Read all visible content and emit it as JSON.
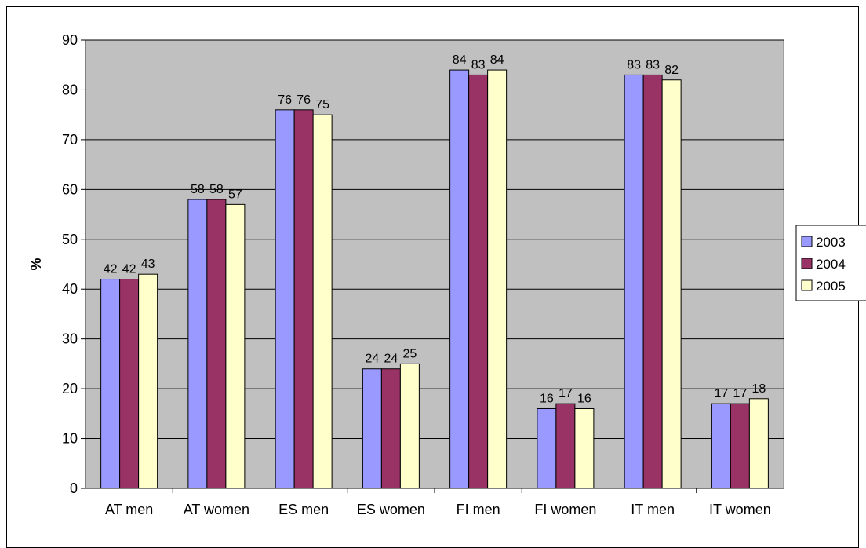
{
  "chart_data": {
    "type": "bar",
    "title": "",
    "xlabel": "",
    "ylabel": "%",
    "ylim": [
      0,
      90
    ],
    "ytick_step": 10,
    "grid": true,
    "legend_position": "right",
    "categories": [
      "AT men",
      "AT women",
      "ES men",
      "ES women",
      "FI men",
      "FI women",
      "IT men",
      "IT women"
    ],
    "series": [
      {
        "name": "2003",
        "color": "#9999ff",
        "values": [
          42,
          58,
          76,
          24,
          84,
          16,
          83,
          17
        ]
      },
      {
        "name": "2004",
        "color": "#993366",
        "values": [
          42,
          58,
          76,
          24,
          83,
          17,
          83,
          17
        ]
      },
      {
        "name": "2005",
        "color": "#ffffcc",
        "values": [
          43,
          57,
          75,
          25,
          84,
          16,
          82,
          18
        ]
      }
    ],
    "plot_background": "#c0c0c0"
  }
}
